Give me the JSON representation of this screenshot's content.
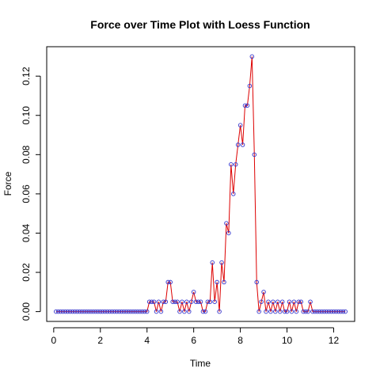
{
  "chart_data": {
    "type": "line",
    "title": "Force over Time Plot with Loess Function",
    "xlabel": "Time",
    "ylabel": "Force",
    "xlim": [
      -0.3,
      12.9
    ],
    "ylim": [
      -0.005,
      0.135
    ],
    "x_ticks": [
      0,
      2,
      4,
      6,
      8,
      10,
      12
    ],
    "y_ticks": [
      0.0,
      0.02,
      0.04,
      0.06,
      0.08,
      0.1,
      0.12
    ],
    "x_tick_labels": [
      "0",
      "2",
      "4",
      "6",
      "8",
      "10",
      "12"
    ],
    "y_tick_labels": [
      "0.00",
      "0.02",
      "0.04",
      "0.06",
      "0.08",
      "0.10",
      "0.12"
    ],
    "grid": false,
    "legend": "none",
    "series": [
      {
        "marker_color": "#3333cc",
        "line_color": "#dd0000",
        "x": [
          0.1,
          0.2,
          0.3,
          0.4,
          0.5,
          0.6,
          0.7,
          0.8,
          0.9,
          1.0,
          1.1,
          1.2,
          1.3,
          1.4,
          1.5,
          1.6,
          1.7,
          1.8,
          1.9,
          2.0,
          2.1,
          2.2,
          2.3,
          2.4,
          2.5,
          2.6,
          2.7,
          2.8,
          2.9,
          3.0,
          3.1,
          3.2,
          3.3,
          3.4,
          3.5,
          3.6,
          3.7,
          3.8,
          3.9,
          4.0,
          4.1,
          4.2,
          4.3,
          4.4,
          4.5,
          4.6,
          4.7,
          4.8,
          4.9,
          5.0,
          5.1,
          5.2,
          5.3,
          5.4,
          5.5,
          5.6,
          5.7,
          5.8,
          5.9,
          6.0,
          6.1,
          6.2,
          6.3,
          6.4,
          6.5,
          6.6,
          6.7,
          6.8,
          6.9,
          7.0,
          7.1,
          7.2,
          7.3,
          7.4,
          7.5,
          7.6,
          7.7,
          7.8,
          7.9,
          8.0,
          8.1,
          8.2,
          8.3,
          8.4,
          8.5,
          8.6,
          8.7,
          8.8,
          8.9,
          9.0,
          9.1,
          9.2,
          9.3,
          9.4,
          9.5,
          9.6,
          9.7,
          9.8,
          9.9,
          10.0,
          10.1,
          10.2,
          10.3,
          10.4,
          10.5,
          10.6,
          10.7,
          10.8,
          10.9,
          11.0,
          11.1,
          11.2,
          11.3,
          11.4,
          11.5,
          11.6,
          11.7,
          11.8,
          11.9,
          12.0,
          12.1,
          12.2,
          12.3,
          12.4,
          12.5
        ],
        "y": [
          0,
          0,
          0,
          0,
          0,
          0,
          0,
          0,
          0,
          0,
          0,
          0,
          0,
          0,
          0,
          0,
          0,
          0,
          0,
          0,
          0,
          0,
          0,
          0,
          0,
          0,
          0,
          0,
          0,
          0,
          0,
          0,
          0,
          0,
          0,
          0,
          0,
          0,
          0,
          0,
          0.005,
          0.005,
          0.005,
          0.0,
          0.005,
          0.0,
          0.005,
          0.005,
          0.015,
          0.015,
          0.005,
          0.005,
          0.005,
          0.0,
          0.005,
          0.0,
          0.005,
          0.0,
          0.005,
          0.01,
          0.005,
          0.005,
          0.005,
          0.0,
          0.0,
          0.005,
          0.005,
          0.025,
          0.005,
          0.015,
          0.0,
          0.025,
          0.015,
          0.045,
          0.04,
          0.075,
          0.06,
          0.075,
          0.085,
          0.095,
          0.085,
          0.105,
          0.105,
          0.115,
          0.13,
          0.08,
          0.015,
          0.0,
          0.005,
          0.01,
          0.0,
          0.005,
          0.0,
          0.005,
          0.0,
          0.005,
          0.0,
          0.005,
          0.0,
          0.0,
          0.005,
          0.0,
          0.005,
          0.0,
          0.005,
          0.005,
          0.0,
          0.0,
          0.0,
          0.005,
          0.0,
          0.0,
          0.0,
          0.0,
          0.0,
          0.0,
          0.0,
          0.0,
          0.0,
          0.0,
          0.0,
          0.0,
          0.0,
          0.0,
          0.0
        ]
      }
    ]
  }
}
